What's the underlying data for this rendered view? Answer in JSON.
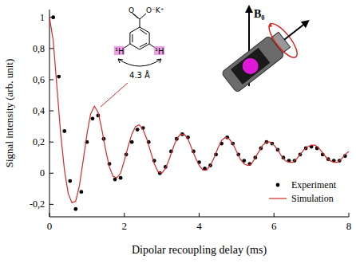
{
  "chart_data": {
    "type": "scatter",
    "x_label": "Dipolar recoupling delay (ms)",
    "y_label": "Signal intensity (arb. unit)",
    "annotations": [
      "O",
      "O⁻K⁺",
      "¹H",
      "¹H",
      "4.3 Å",
      "B₀"
    ],
    "xlim": [
      0,
      8
    ],
    "xticks": [
      0,
      2,
      4,
      6,
      8
    ],
    "ylim": [
      -0.28,
      1.05
    ],
    "yticks": [
      {
        "value": -0.2,
        "label": "-0,2"
      },
      0,
      {
        "value": 0.2,
        "label": "0,2"
      },
      {
        "value": 0.4,
        "label": "0,4"
      },
      {
        "value": 0.6,
        "label": "0,6"
      },
      {
        "value": 0.8,
        "label": "0,8"
      },
      1
    ],
    "legend": "bottom-right",
    "grid": false,
    "series": [
      {
        "name": "Experiment",
        "type": "scatter",
        "marker": "circle",
        "color": "#000000",
        "x": [
          0.1,
          0.25,
          0.4,
          0.55,
          0.7,
          0.85,
          1.0,
          1.15,
          1.3,
          1.45,
          1.6,
          1.75,
          1.9,
          2.05,
          2.2,
          2.35,
          2.5,
          2.65,
          2.8,
          2.95,
          3.1,
          3.25,
          3.4,
          3.55,
          3.7,
          3.85,
          4.0,
          4.15,
          4.3,
          4.45,
          4.6,
          4.75,
          4.9,
          5.05,
          5.2,
          5.35,
          5.5,
          5.65,
          5.8,
          5.95,
          6.1,
          6.25,
          6.4,
          6.55,
          6.7,
          6.85,
          7.0,
          7.15,
          7.3,
          7.45,
          7.6,
          7.75,
          7.9
        ],
        "values": [
          1.0,
          0.62,
          0.27,
          -0.05,
          -0.23,
          -0.12,
          0.2,
          0.35,
          0.37,
          0.22,
          0.06,
          -0.04,
          -0.03,
          0.12,
          0.2,
          0.28,
          0.29,
          0.2,
          0.08,
          0.0,
          0.04,
          0.14,
          0.22,
          0.25,
          0.23,
          0.14,
          0.07,
          0.03,
          0.05,
          0.12,
          0.19,
          0.23,
          0.19,
          0.12,
          0.08,
          0.06,
          0.1,
          0.16,
          0.2,
          0.19,
          0.15,
          0.1,
          0.08,
          0.08,
          0.12,
          0.16,
          0.17,
          0.16,
          0.12,
          0.09,
          0.08,
          0.08,
          0.11
        ]
      },
      {
        "name": "Simulation",
        "type": "line",
        "line_style": "solid",
        "color": "#d42a2a",
        "x": [
          0,
          0.1,
          0.2,
          0.3,
          0.4,
          0.5,
          0.6,
          0.7,
          0.8,
          0.9,
          1.0,
          1.1,
          1.2,
          1.3,
          1.4,
          1.5,
          1.6,
          1.7,
          1.8,
          1.9,
          2.0,
          2.1,
          2.2,
          2.3,
          2.4,
          2.5,
          2.6,
          2.7,
          2.8,
          2.9,
          3.0,
          3.1,
          3.2,
          3.3,
          3.4,
          3.5,
          3.6,
          3.7,
          3.8,
          3.9,
          4.0,
          4.1,
          4.2,
          4.3,
          4.4,
          4.5,
          4.6,
          4.7,
          4.8,
          4.9,
          5.0,
          5.1,
          5.2,
          5.3,
          5.4,
          5.5,
          5.6,
          5.7,
          5.8,
          5.9,
          6.0,
          6.1,
          6.2,
          6.3,
          6.4,
          6.5,
          6.6,
          6.7,
          6.8,
          6.9,
          7.0,
          7.1,
          7.2,
          7.3,
          7.4,
          7.5,
          7.6,
          7.7,
          7.8,
          7.9,
          8.0
        ],
        "values": [
          1.0,
          0.85,
          0.55,
          0.25,
          0.02,
          -0.13,
          -0.19,
          -0.18,
          -0.08,
          0.08,
          0.25,
          0.38,
          0.43,
          0.39,
          0.28,
          0.15,
          0.04,
          -0.02,
          -0.03,
          0.0,
          0.08,
          0.17,
          0.25,
          0.3,
          0.31,
          0.28,
          0.22,
          0.14,
          0.06,
          0.01,
          0.0,
          0.03,
          0.09,
          0.16,
          0.22,
          0.25,
          0.25,
          0.22,
          0.16,
          0.1,
          0.05,
          0.02,
          0.02,
          0.05,
          0.1,
          0.16,
          0.21,
          0.23,
          0.22,
          0.19,
          0.14,
          0.09,
          0.06,
          0.05,
          0.06,
          0.1,
          0.14,
          0.18,
          0.2,
          0.2,
          0.18,
          0.15,
          0.11,
          0.08,
          0.07,
          0.07,
          0.09,
          0.12,
          0.15,
          0.17,
          0.18,
          0.18,
          0.16,
          0.13,
          0.1,
          0.08,
          0.07,
          0.07,
          0.09,
          0.12,
          0.14
        ]
      }
    ]
  }
}
